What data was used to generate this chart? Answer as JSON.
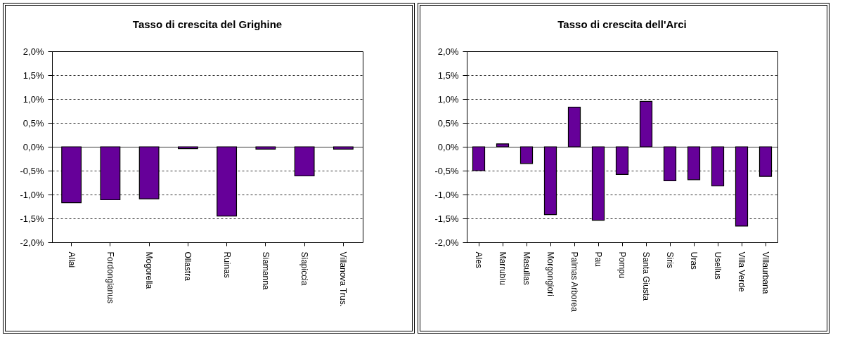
{
  "chart_data": [
    {
      "type": "bar",
      "title": "Tasso di crescita del Grighine",
      "categories": [
        "Allai",
        "Fordongianus",
        "Mogorella",
        "Ollastra",
        "Ruinas",
        "Siamanna",
        "Siapiccia",
        "Villanova Trus."
      ],
      "values": [
        -1.17,
        -1.11,
        -1.09,
        -0.04,
        -1.45,
        -0.05,
        -0.61,
        -0.05
      ],
      "color": "#660099",
      "ylim": [
        -2,
        2
      ],
      "yticks": [
        {
          "value": -2,
          "label": "-2,0%"
        },
        {
          "value": -1.5,
          "label": "-1,5%"
        },
        {
          "value": -1,
          "label": "-1,0%"
        },
        {
          "value": -0.5,
          "label": "-0,5%"
        },
        {
          "value": 0,
          "label": "0,0%"
        },
        {
          "value": 0.5,
          "label": "0,5%"
        },
        {
          "value": 1,
          "label": "1,0%"
        },
        {
          "value": 1.5,
          "label": "1,5%"
        },
        {
          "value": 2,
          "label": "2,0%"
        }
      ],
      "grid": "y"
    },
    {
      "type": "bar",
      "title": "Tasso di crescita dell'Arci",
      "categories": [
        "Ales",
        "Marrubiu",
        "Masullas",
        "Morgongiori",
        "Palmas Arborea",
        "Pau",
        "Pompu",
        "Santa Giusta",
        "Siris",
        "Uras",
        "Usellus",
        "Villa Verde",
        "Villaurbana"
      ],
      "values": [
        -0.5,
        0.06,
        -0.35,
        -1.42,
        0.83,
        -1.54,
        -0.58,
        0.95,
        -0.71,
        -0.69,
        -0.82,
        -1.66,
        -0.62
      ],
      "color": "#660099",
      "ylim": [
        -2,
        2
      ],
      "yticks": [
        {
          "value": -2,
          "label": "-2,0%"
        },
        {
          "value": -1.5,
          "label": "-1,5%"
        },
        {
          "value": -1,
          "label": "-1,0%"
        },
        {
          "value": -0.5,
          "label": "-0,5%"
        },
        {
          "value": 0,
          "label": "0,0%"
        },
        {
          "value": 0.5,
          "label": "0,5%"
        },
        {
          "value": 1,
          "label": "1,0%"
        },
        {
          "value": 1.5,
          "label": "1,5%"
        },
        {
          "value": 2,
          "label": "2,0%"
        }
      ],
      "grid": "y"
    }
  ]
}
